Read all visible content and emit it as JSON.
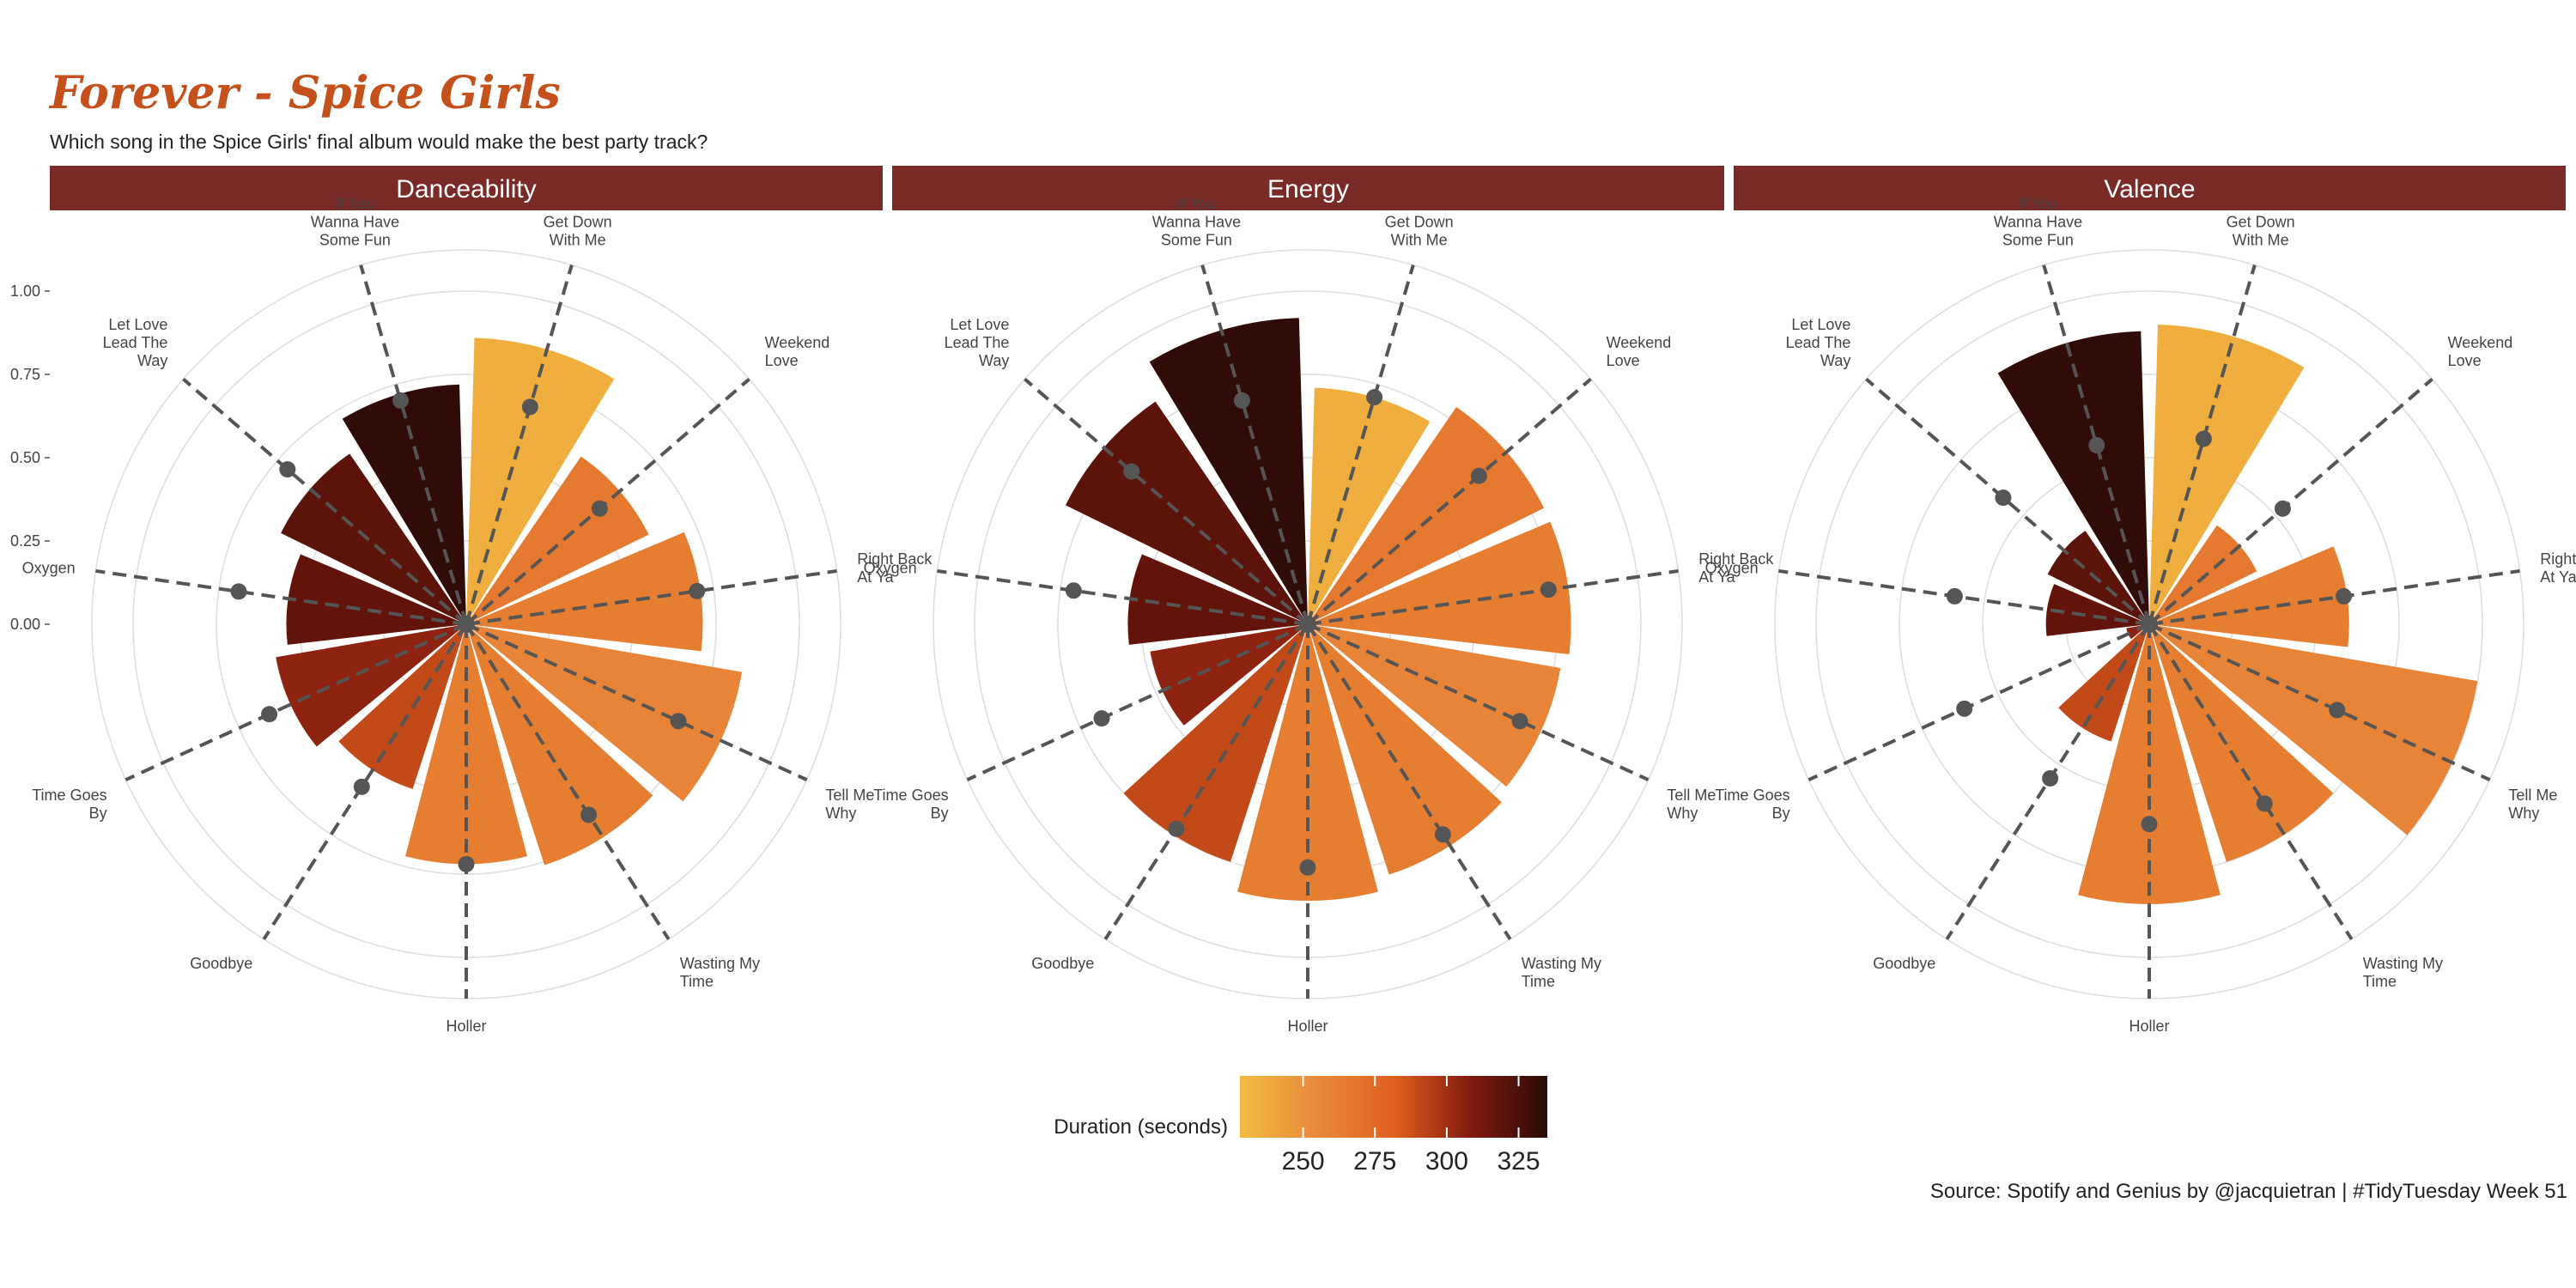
{
  "title": "Forever - Spice Girls",
  "subtitle": "Which song in the Spice Girls' final album would make the best party track?",
  "caption": "Source: Spotify and Genius by @jacquietran | #TidyTuesday Week 51",
  "legend": {
    "title": "Duration (seconds)",
    "ticks": [
      "250",
      "275",
      "300",
      "325"
    ],
    "tick_values": [
      250,
      275,
      300,
      325
    ],
    "range": [
      228,
      335
    ],
    "colors": [
      "#F2BB40",
      "#E8893A",
      "#E0601E",
      "#821A0E",
      "#2A0A06"
    ]
  },
  "chart_data": [
    {
      "type": "bar",
      "coord": "polar",
      "panel": "Danceability",
      "categories": [
        "Get Down With Me",
        "Weekend Love",
        "Right Back At Ya",
        "Tell Me Why",
        "Wasting My Time",
        "Holler",
        "Goodbye",
        "Time Goes By",
        "Oxygen",
        "Let Love Lead The Way",
        "If You Wanna Have Some Fun"
      ],
      "values": [
        0.86,
        0.61,
        0.71,
        0.84,
        0.76,
        0.72,
        0.52,
        0.58,
        0.54,
        0.62,
        0.72
      ],
      "points": [
        0.68,
        0.53,
        0.7,
        0.7,
        0.68,
        0.72,
        0.58,
        0.65,
        0.69,
        0.71,
        0.7
      ],
      "duration": [
        235,
        265,
        262,
        258,
        262,
        262,
        290,
        305,
        318,
        320,
        333
      ],
      "yticks": [
        "0.00",
        "0.25",
        "0.50",
        "0.75",
        "1.00"
      ],
      "ylim": [
        0,
        1.15
      ]
    },
    {
      "type": "bar",
      "coord": "polar",
      "panel": "Energy",
      "categories": [
        "Get Down With Me",
        "Weekend Love",
        "Right Back At Ya",
        "Tell Me Why",
        "Wasting My Time",
        "Holler",
        "Goodbye",
        "Time Goes By",
        "Oxygen",
        "Let Love Lead The Way",
        "If You Wanna Have Some Fun"
      ],
      "values": [
        0.71,
        0.79,
        0.79,
        0.77,
        0.79,
        0.83,
        0.75,
        0.48,
        0.54,
        0.81,
        0.92
      ],
      "points": [
        0.71,
        0.68,
        0.73,
        0.7,
        0.75,
        0.73,
        0.73,
        0.68,
        0.71,
        0.7,
        0.7
      ],
      "duration": [
        235,
        265,
        262,
        258,
        262,
        262,
        290,
        305,
        318,
        320,
        333
      ],
      "yticks": [
        "0.00",
        "0.25",
        "0.50",
        "0.75",
        "1.00"
      ],
      "ylim": [
        0,
        1.15
      ]
    },
    {
      "type": "bar",
      "coord": "polar",
      "panel": "Valence",
      "categories": [
        "Get Down With Me",
        "Weekend Love",
        "Right Back At Ya",
        "Tell Me Why",
        "Wasting My Time",
        "Holler",
        "Goodbye",
        "Time Goes By",
        "Oxygen",
        "Let Love Lead The Way",
        "If You Wanna Have Some Fun"
      ],
      "values": [
        0.9,
        0.36,
        0.6,
        1.0,
        0.75,
        0.84,
        0.37,
        0.07,
        0.31,
        0.34,
        0.88
      ],
      "points": [
        0.58,
        0.53,
        0.59,
        0.62,
        0.64,
        0.6,
        0.55,
        0.61,
        0.59,
        0.58,
        0.56
      ],
      "duration": [
        235,
        265,
        262,
        258,
        262,
        262,
        290,
        305,
        318,
        320,
        333
      ],
      "yticks": [
        "0.00",
        "0.25",
        "0.50",
        "0.75",
        "1.00"
      ],
      "ylim": [
        0,
        1.15
      ]
    }
  ]
}
